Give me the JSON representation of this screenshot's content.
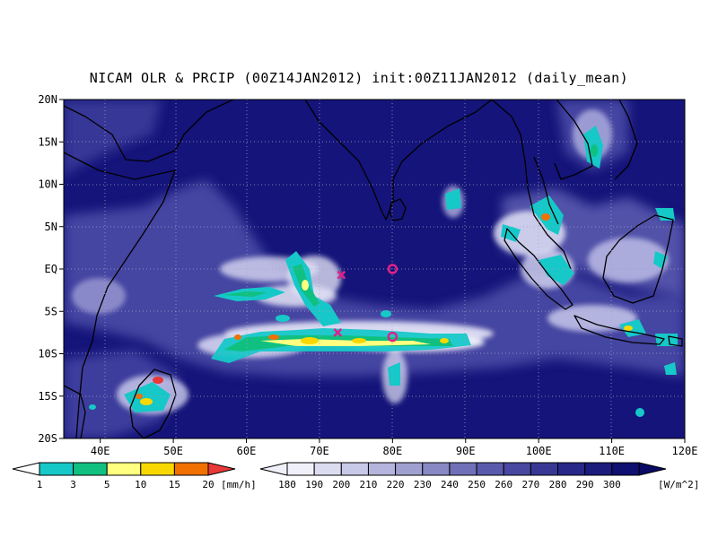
{
  "title": "NICAM OLR & PRCIP (00Z14JAN2012) init:00Z11JAN2012 (daily_mean)",
  "lat_labels": [
    "20N",
    "15N",
    "10N",
    "5N",
    "EQ",
    "5S",
    "10S",
    "15S",
    "20S"
  ],
  "lon_labels": [
    "40E",
    "50E",
    "60E",
    "70E",
    "80E",
    "90E",
    "100E",
    "110E",
    "120E"
  ],
  "map_extent": {
    "lon": [
      35,
      120
    ],
    "lat": [
      -20,
      20
    ]
  },
  "precip_colorbar": {
    "unit": "[mm/h]",
    "tick_labels": [
      "1",
      "3",
      "5",
      "10",
      "15",
      "20"
    ],
    "colors": [
      "#16c8c8",
      "#10c080",
      "#ffff80",
      "#f8d800",
      "#f07000",
      "#e83838"
    ]
  },
  "olr_colorbar": {
    "unit": "[W/m^2]",
    "tick_labels": [
      "180",
      "190",
      "200",
      "210",
      "220",
      "230",
      "240",
      "250",
      "260",
      "270",
      "280",
      "290",
      "300"
    ],
    "colors": [
      "#f0f0fa",
      "#dcdcf0",
      "#c8c8e8",
      "#b4b4dc",
      "#a0a0d0",
      "#8888c4",
      "#7070b8",
      "#5a5aac",
      "#4848a0",
      "#383894",
      "#282888",
      "#1c1c7c",
      "#101070",
      "#0a0a64"
    ]
  },
  "markers": [
    {
      "type": "x",
      "lon": 73,
      "lat": -0.7
    },
    {
      "type": "circle",
      "lon": 80,
      "lat": 0
    },
    {
      "type": "x",
      "lon": 72.5,
      "lat": -7.5
    },
    {
      "type": "circle",
      "lon": 80,
      "lat": -8
    }
  ],
  "colors": {
    "ocean_background": "#14147a",
    "marker": "#e0208a"
  }
}
